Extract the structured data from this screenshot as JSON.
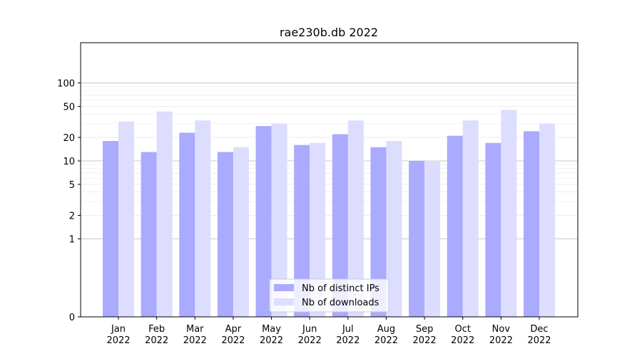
{
  "chart_data": {
    "type": "bar",
    "title": "rae230b.db 2022",
    "xlabel": "",
    "ylabel": "",
    "scale": "symlog",
    "ylim": [
      0,
      130
    ],
    "yticks": [
      0,
      1,
      2,
      5,
      10,
      20,
      50,
      100
    ],
    "grid": true,
    "legend_position": "bottom-center",
    "categories": [
      "Jan\n2022",
      "Feb\n2022",
      "Mar\n2022",
      "Apr\n2022",
      "May\n2022",
      "Jun\n2022",
      "Jul\n2022",
      "Aug\n2022",
      "Sep\n2022",
      "Oct\n2022",
      "Nov\n2022",
      "Dec\n2022"
    ],
    "series": [
      {
        "name": "Nb of distinct IPs",
        "color": "#aaaaff",
        "values": [
          18,
          13,
          23,
          13,
          28,
          16,
          22,
          15,
          10,
          21,
          17,
          24
        ]
      },
      {
        "name": "Nb of downloads",
        "color": "#ddddff",
        "values": [
          32,
          43,
          33,
          15,
          30,
          17,
          33,
          18,
          10,
          33,
          45,
          30
        ]
      }
    ]
  }
}
